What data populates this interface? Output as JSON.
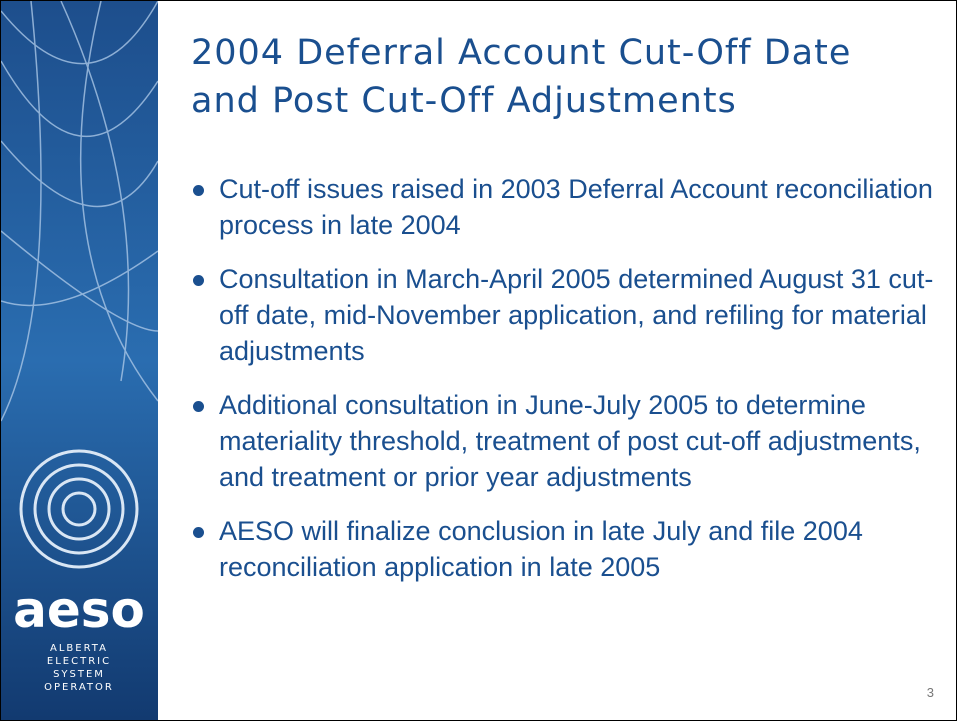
{
  "header": {
    "title_lines": [
      "2004 Deferral Account Cut-Off Date",
      "and Post Cut-Off Adjustments"
    ]
  },
  "bullets": [
    "Cut-off issues raised in 2003 Deferral Account reconciliation process in late 2004",
    "Consultation in March-April 2005 determined August 31 cut-off date, mid-November application, and refiling for material adjustments",
    "Additional consultation in June-July 2005 to determine materiality threshold, treatment of post cut-off adjustments, and treatment or prior year adjustments",
    "AESO will finalize conclusion in late July  and file 2004 reconciliation application in late 2005"
  ],
  "logo": {
    "name": "aeso",
    "lines": [
      "ALBERTA",
      "ELECTRIC",
      "SYSTEM",
      "OPERATOR"
    ]
  },
  "page_number": "3"
}
